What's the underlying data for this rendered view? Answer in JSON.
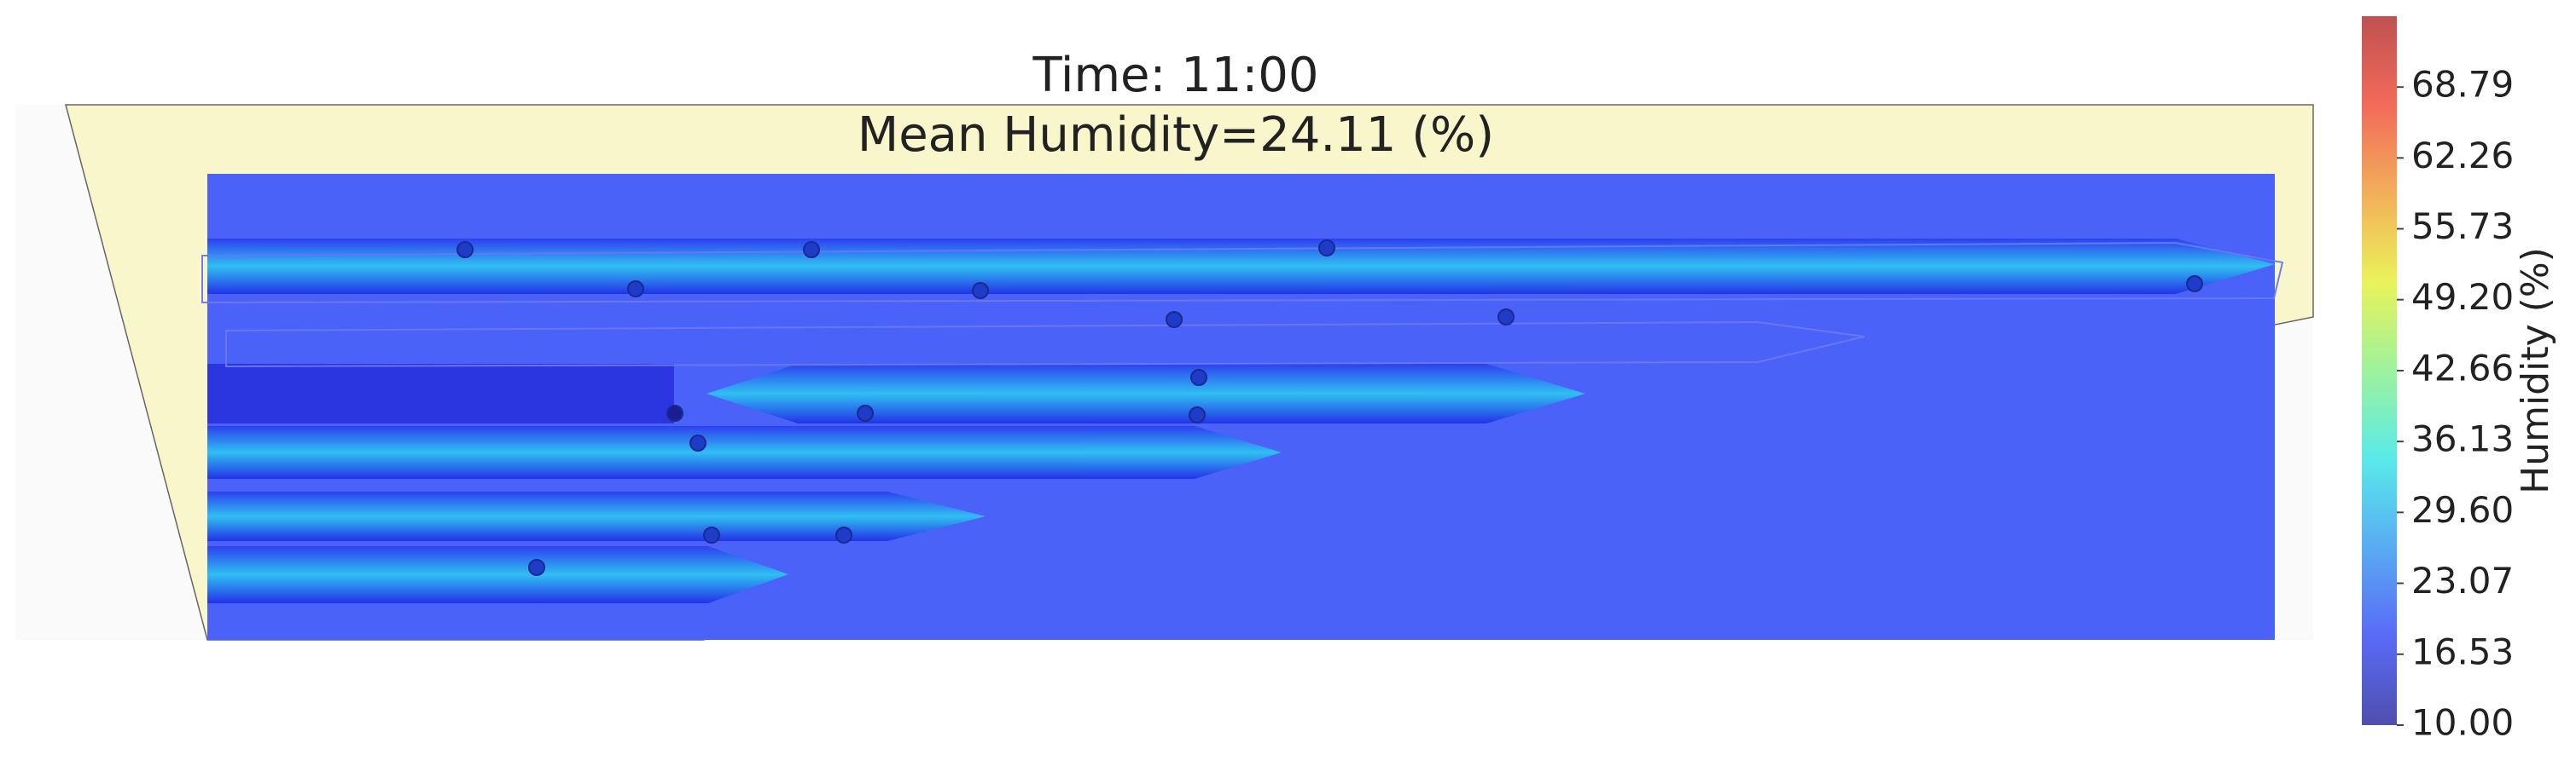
{
  "chart_data": {
    "type": "contour",
    "title": "Time: 11:00",
    "subtitle": "Mean Humidity=24.11 (%)",
    "colorbar_label": "Humidity (%)",
    "clim": [
      10,
      75.32
    ],
    "colorbar_ticks": [
      {
        "value": 10,
        "label": "10.00"
      },
      {
        "value": 16.53,
        "label": "16.53"
      },
      {
        "value": 23.07,
        "label": "23.07"
      },
      {
        "value": 29.6,
        "label": "29.60"
      },
      {
        "value": 36.13,
        "label": "36.13"
      },
      {
        "value": 42.66,
        "label": "42.66"
      },
      {
        "value": 49.2,
        "label": "49.20"
      },
      {
        "value": 55.73,
        "label": "55.73"
      },
      {
        "value": 62.26,
        "label": "62.26"
      },
      {
        "value": 68.79,
        "label": "68.79"
      }
    ],
    "colors": [
      "#30309e",
      "#3c50f5",
      "#3c9cf0",
      "#3ce6e6",
      "#8cf08c",
      "#e6f03c",
      "#f0a03c",
      "#f0503c",
      "#b43232"
    ]
  }
}
